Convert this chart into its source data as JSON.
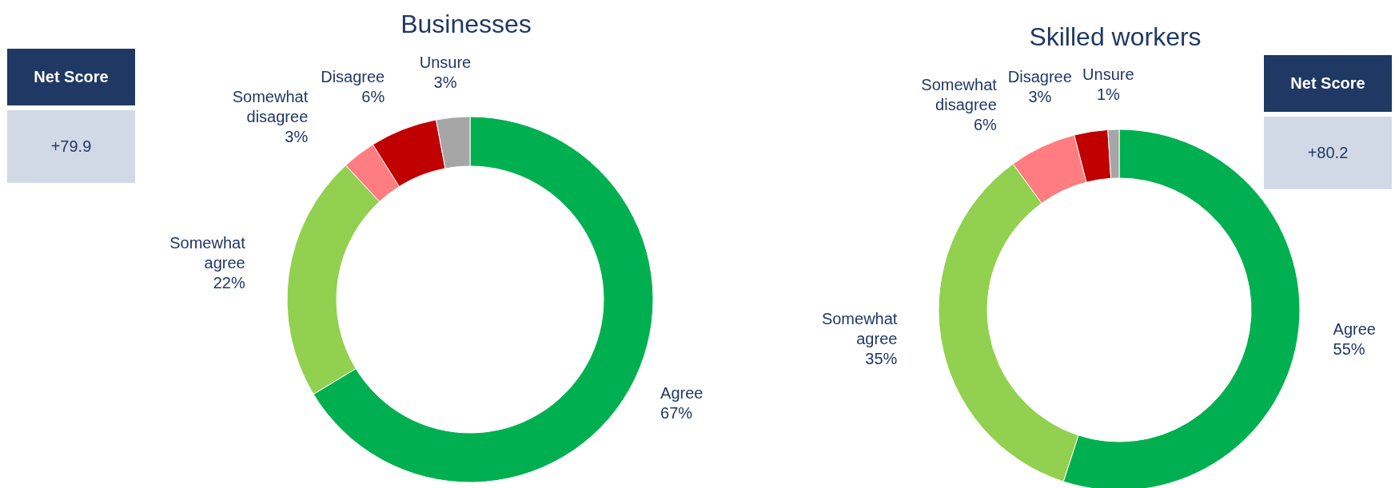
{
  "chart_data": [
    {
      "type": "donut",
      "title": "Businesses",
      "categories": [
        "Agree",
        "Somewhat agree",
        "Somewhat disagree",
        "Disagree",
        "Unsure"
      ],
      "values": [
        67,
        22,
        3,
        6,
        3
      ],
      "colors": [
        "#00b050",
        "#92d050",
        "#ff7c80",
        "#c00000",
        "#a6a6a6"
      ],
      "value_labels": [
        "67%",
        "22%",
        "3%",
        "6%",
        "3%"
      ],
      "annotations": [
        "Net Score",
        "+79.9"
      ]
    },
    {
      "type": "donut",
      "title": "Skilled workers",
      "categories": [
        "Agree",
        "Somewhat agree",
        "Somewhat disagree",
        "Disagree",
        "Unsure"
      ],
      "values": [
        55,
        35,
        6,
        3,
        1
      ],
      "colors": [
        "#00b050",
        "#92d050",
        "#ff7c80",
        "#c00000",
        "#a6a6a6"
      ],
      "value_labels": [
        "55%",
        "35%",
        "6%",
        "3%",
        "1%"
      ],
      "annotations": [
        "Net Score",
        "+80.2"
      ]
    }
  ]
}
